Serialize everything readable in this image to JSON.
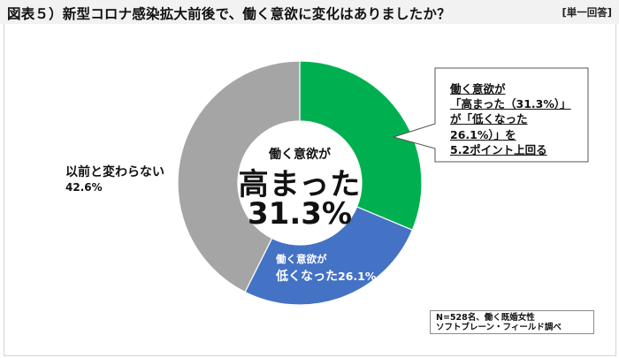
{
  "header": {
    "title": "図表５）新型コロナ感染拡大前後で、働く意欲に変化はありましたか？",
    "answer_type": "[単一回答]"
  },
  "center": {
    "line1": "働く意欲が",
    "line2": "高まった",
    "line3": "31.3%"
  },
  "labels": {
    "gray": {
      "text": "以前と変わらない",
      "pct": "42.6%"
    },
    "blue": {
      "line1": "働く意欲が",
      "line2": "低くなった",
      "pct": "26.1%"
    }
  },
  "callout": {
    "lines": [
      "働く意欲が",
      "「高まった（31.3%）」",
      "が「低くなった",
      "26.1%）」を",
      "5.2ポイント上回る"
    ]
  },
  "note": {
    "line1": "N=528名、働く既婚女性",
    "line2": "ソフトブレーン・フィールド調べ"
  },
  "colors": {
    "increased": "#00b050",
    "decreased": "#4472c4",
    "unchanged": "#a5a5a5",
    "header_bg": "#f2f2f2"
  },
  "chart_data": {
    "type": "pie",
    "subtype": "donut",
    "title": "新型コロナ感染拡大前後で、働く意欲に変化はありましたか？",
    "categories": [
      "働く意欲が高まった",
      "働く意欲が低くなった",
      "以前と変わらない"
    ],
    "values": [
      31.3,
      26.1,
      42.6
    ],
    "unit": "%",
    "colors": [
      "#00b050",
      "#4472c4",
      "#a5a5a5"
    ],
    "start_angle": "12 o'clock, clockwise",
    "annotation": "働く意欲が「高まった（31.3%）」が「低くなった26.1%）」を5.2ポイント上回る",
    "note": "N=528名、働く既婚女性 / ソフトブレーン・フィールド調べ"
  }
}
